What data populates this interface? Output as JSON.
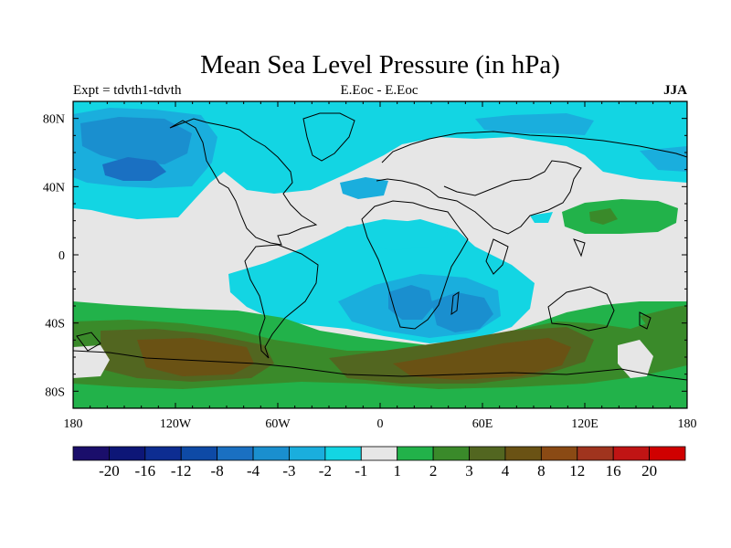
{
  "title": "Mean Sea Level Pressure (in hPa)",
  "subtitle_left": "Expt = tdvth1-tdvth",
  "subtitle_center": "E.Eoc - E.Eoc",
  "subtitle_right": "JJA",
  "map": {
    "x_ticks": [
      {
        "lon": -180,
        "label": "180"
      },
      {
        "lon": -120,
        "label": "120W"
      },
      {
        "lon": -60,
        "label": "60W"
      },
      {
        "lon": 0,
        "label": "0"
      },
      {
        "lon": 60,
        "label": "60E"
      },
      {
        "lon": 120,
        "label": "120E"
      },
      {
        "lon": 180,
        "label": "180"
      }
    ],
    "y_ticks": [
      {
        "lat": 80,
        "label": "80N"
      },
      {
        "lat": 40,
        "label": "40N"
      },
      {
        "lat": 0,
        "label": "0"
      },
      {
        "lat": -40,
        "label": "40S"
      },
      {
        "lat": -80,
        "label": "80S"
      }
    ]
  },
  "colorbar": {
    "colors": [
      "#1a0e6b",
      "#0d1677",
      "#0d2d91",
      "#0e4aa6",
      "#1a70c2",
      "#1a8fcf",
      "#1aaedd",
      "#13d5e3",
      "#e6e6e6",
      "#22b24a",
      "#3a8a2a",
      "#526620",
      "#6a5214",
      "#8a4a14",
      "#a0341e",
      "#c01414",
      "#d00000"
    ],
    "labels": [
      "-20",
      "-16",
      "-12",
      "-8",
      "-4",
      "-3",
      "-2",
      "-1",
      "1",
      "2",
      "3",
      "4",
      "8",
      "12",
      "16",
      "20"
    ]
  }
}
